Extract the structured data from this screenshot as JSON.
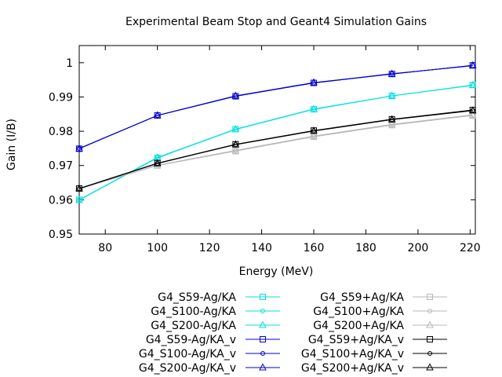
{
  "chart_data": {
    "type": "line",
    "title": "Experimental Beam Stop and Geant4 Simulation Gains",
    "xlabel": "Energy (MeV)",
    "ylabel": "Gain (I/B)",
    "xlim": [
      70,
      222
    ],
    "ylim": [
      0.95,
      1.005
    ],
    "xticks": [
      80,
      100,
      120,
      140,
      160,
      180,
      200,
      220
    ],
    "yticks": [
      0.95,
      0.96,
      0.97,
      0.98,
      0.99,
      1
    ],
    "ytick_labels": [
      "0.95",
      "0.96",
      "0.97",
      "0.98",
      "0.99",
      "1"
    ],
    "grid": false,
    "legend_position": "bottom",
    "x": [
      70,
      100,
      130,
      160,
      190,
      221
    ],
    "series": [
      {
        "name": "G4_S59-Ag/KA",
        "color": "#00e0e0",
        "marker": "square",
        "values": [
          0.96,
          0.9722,
          0.9806,
          0.9864,
          0.9903,
          0.9935
        ]
      },
      {
        "name": "G4_S100-Ag/KA",
        "color": "#00e0e0",
        "marker": "circle",
        "values": [
          0.96,
          0.9724,
          0.9806,
          0.9865,
          0.9903,
          0.9934
        ]
      },
      {
        "name": "G4_S200-Ag/KA",
        "color": "#00e0e0",
        "marker": "triangle",
        "values": [
          0.9599,
          0.9723,
          0.9805,
          0.9864,
          0.9903,
          0.9934
        ]
      },
      {
        "name": "G4_S59-Ag/KA_v",
        "color": "#0000d0",
        "marker": "square",
        "values": [
          0.9749,
          0.9846,
          0.9902,
          0.9941,
          0.9967,
          0.9992
        ]
      },
      {
        "name": "G4_S100-Ag/KA_v",
        "color": "#0000d0",
        "marker": "circle",
        "values": [
          0.975,
          0.9846,
          0.9903,
          0.9941,
          0.9968,
          0.9991
        ]
      },
      {
        "name": "G4_S200-Ag/KA_v",
        "color": "#0000d0",
        "marker": "triangle",
        "values": [
          0.9749,
          0.9846,
          0.9903,
          0.9942,
          0.9967,
          0.9992
        ]
      },
      {
        "name": "G4_S59+Ag/KA",
        "color": "#b8b8b8",
        "marker": "square",
        "values": [
          0.9633,
          0.97,
          0.9742,
          0.9784,
          0.9818,
          0.9846
        ]
      },
      {
        "name": "G4_S100+Ag/KA",
        "color": "#b8b8b8",
        "marker": "circle",
        "values": [
          0.9632,
          0.9701,
          0.9744,
          0.9786,
          0.982,
          0.9848
        ]
      },
      {
        "name": "G4_S200+Ag/KA",
        "color": "#b8b8b8",
        "marker": "triangle",
        "values": [
          0.9632,
          0.97,
          0.9743,
          0.9785,
          0.9819,
          0.9847
        ]
      },
      {
        "name": "G4_S59+Ag/KA_v",
        "color": "#000000",
        "marker": "square",
        "values": [
          0.9633,
          0.9707,
          0.9762,
          0.9802,
          0.9835,
          0.9862
        ]
      },
      {
        "name": "G4_S100+Ag/KA_v",
        "color": "#000000",
        "marker": "circle",
        "values": [
          0.9632,
          0.9706,
          0.9761,
          0.9801,
          0.9834,
          0.9861
        ]
      },
      {
        "name": "G4_S200+Ag/KA_v",
        "color": "#000000",
        "marker": "triangle",
        "values": [
          0.9633,
          0.9706,
          0.9761,
          0.9801,
          0.9834,
          0.986
        ]
      }
    ]
  }
}
